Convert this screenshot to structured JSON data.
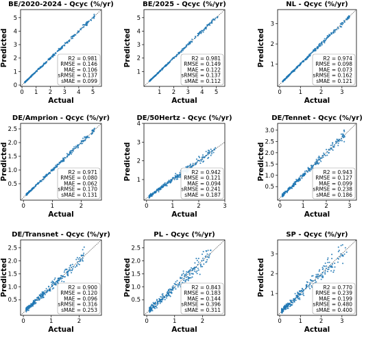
{
  "figure": {
    "axis_xlabel": "Actual",
    "axis_ylabel": "Predicted",
    "colors": {
      "points": "#1f77b4",
      "identity_line": "#444444",
      "text": "#000000"
    }
  },
  "chart_data": [
    {
      "type": "scatter",
      "title": "BE/2020-2024 - Qcyc (%/yr)",
      "xlabel": "Actual",
      "ylabel": "Predicted",
      "xlim": [
        -0.1,
        5.6
      ],
      "ylim": [
        -0.1,
        5.6
      ],
      "xticks": [
        0,
        1,
        2,
        3,
        4,
        5
      ],
      "yticks": [
        0,
        1,
        2,
        3,
        4,
        5
      ],
      "xtick_labels": [
        "0",
        "1",
        "2",
        "3",
        "4",
        "5"
      ],
      "ytick_labels": [
        "0",
        "1",
        "2",
        "3",
        "4",
        "5"
      ],
      "identity_line": true,
      "grid": false,
      "point_range": [
        0.2,
        5.1
      ],
      "spread": 0.1,
      "metrics": [
        [
          "R2",
          "0.981"
        ],
        [
          "RMSE",
          "0.146"
        ],
        [
          "MAE",
          "0.106"
        ],
        [
          "sRMSE",
          "0.137"
        ],
        [
          "sMAE",
          "0.099"
        ]
      ]
    },
    {
      "type": "scatter",
      "title": "BE/2025 - Qcyc (%/yr)",
      "xlabel": "Actual",
      "ylabel": "Predicted",
      "xlim": [
        -0.1,
        5.6
      ],
      "ylim": [
        -0.1,
        5.6
      ],
      "xticks": [
        1,
        2,
        3,
        4,
        5
      ],
      "yticks": [
        1,
        2,
        3,
        4,
        5
      ],
      "xtick_labels": [
        "1",
        "2",
        "3",
        "4",
        "5"
      ],
      "ytick_labels": [
        "1",
        "2",
        "3",
        "4",
        "5"
      ],
      "identity_line": true,
      "grid": false,
      "point_range": [
        0.3,
        5.1
      ],
      "spread": 0.09,
      "metrics": [
        [
          "R2",
          "0.981"
        ],
        [
          "RMSE",
          "0.149"
        ],
        [
          "MAE",
          "0.122"
        ],
        [
          "sRMSE",
          "0.137"
        ],
        [
          "sMAE",
          "0.112"
        ]
      ]
    },
    {
      "type": "scatter",
      "title": "NL - Qcyc (%/yr)",
      "xlabel": "Actual",
      "ylabel": "Predicted",
      "xlim": [
        -0.1,
        3.7
      ],
      "ylim": [
        -0.1,
        3.7
      ],
      "xticks": [
        0,
        1,
        2,
        3
      ],
      "yticks": [
        1,
        2,
        3
      ],
      "xtick_labels": [
        "0",
        "1",
        "2",
        "3"
      ],
      "ytick_labels": [
        "1",
        "2",
        "3"
      ],
      "identity_line": true,
      "grid": false,
      "point_range": [
        0.15,
        3.4
      ],
      "spread": 0.1,
      "metrics": [
        [
          "R2",
          "0.974"
        ],
        [
          "RMSE",
          "0.098"
        ],
        [
          "MAE",
          "0.073"
        ],
        [
          "sRMSE",
          "0.162"
        ],
        [
          "sMAE",
          "0.121"
        ]
      ]
    },
    {
      "type": "scatter",
      "title": "DE/Amprion - Qcyc (%/yr)",
      "xlabel": "Actual",
      "ylabel": "Predicted",
      "xlim": [
        -0.1,
        2.7
      ],
      "ylim": [
        -0.1,
        2.7
      ],
      "xticks": [
        0,
        1,
        2
      ],
      "yticks": [
        0.5,
        1.0,
        1.5,
        2.0,
        2.5
      ],
      "xtick_labels": [
        "0",
        "1",
        "2"
      ],
      "ytick_labels": [
        "0.5",
        "1.0",
        "1.5",
        "2.0",
        "2.5"
      ],
      "identity_line": true,
      "grid": false,
      "point_range": [
        0.1,
        2.5
      ],
      "spread": 0.1,
      "metrics": [
        [
          "R2",
          "0.971"
        ],
        [
          "RMSE",
          "0.080"
        ],
        [
          "MAE",
          "0.062"
        ],
        [
          "sRMSE",
          "0.170"
        ],
        [
          "sMAE",
          "0.131"
        ]
      ]
    },
    {
      "type": "scatter",
      "title": "DE/50Hertz - Qcyc (%/yr)",
      "xlabel": "Actual",
      "ylabel": "Predicted",
      "xlim": [
        -0.1,
        3.0
      ],
      "ylim": [
        -0.1,
        4.0
      ],
      "xticks": [
        0,
        1,
        2,
        3
      ],
      "yticks": [
        1,
        2,
        3,
        4
      ],
      "xtick_labels": [
        "0",
        "1",
        "2",
        "3"
      ],
      "ytick_labels": [
        "1",
        "2",
        "3",
        "4"
      ],
      "identity_line": true,
      "grid": false,
      "point_range": [
        0.1,
        2.7
      ],
      "spread": 0.25,
      "metrics": [
        [
          "R2",
          "0.942"
        ],
        [
          "RMSE",
          "0.121"
        ],
        [
          "MAE",
          "0.094"
        ],
        [
          "sRMSE",
          "0.241"
        ],
        [
          "sMAE",
          "0.187"
        ]
      ]
    },
    {
      "type": "scatter",
      "title": "DE/Tennet - Qcyc (%/yr)",
      "xlabel": "Actual",
      "ylabel": "Predicted",
      "xlim": [
        -0.1,
        3.3
      ],
      "ylim": [
        -0.1,
        3.3
      ],
      "xticks": [
        0,
        1,
        2,
        3
      ],
      "yticks": [
        0.5,
        1.0,
        1.5,
        2.0,
        2.5,
        3.0
      ],
      "xtick_labels": [
        "0",
        "1",
        "2",
        "3"
      ],
      "ytick_labels": [
        "0.5",
        "1.0",
        "1.5",
        "2.0",
        "2.5",
        "3.0"
      ],
      "identity_line": true,
      "grid": false,
      "point_range": [
        0.1,
        2.8
      ],
      "spread": 0.22,
      "metrics": [
        [
          "R2",
          "0.943"
        ],
        [
          "RMSE",
          "0.127"
        ],
        [
          "MAE",
          "0.099"
        ],
        [
          "sRMSE",
          "0.238"
        ],
        [
          "sMAE",
          "0.186"
        ]
      ]
    },
    {
      "type": "scatter",
      "title": "DE/Transnet - Qcyc (%/yr)",
      "xlabel": "Actual",
      "ylabel": "Predicted",
      "xlim": [
        -0.1,
        2.8
      ],
      "ylim": [
        -0.1,
        2.8
      ],
      "xticks": [
        0,
        1,
        2
      ],
      "yticks": [
        0.5,
        1.0,
        1.5,
        2.0,
        2.5
      ],
      "xtick_labels": [
        "0",
        "1",
        "2"
      ],
      "ytick_labels": [
        "0.5",
        "1.0",
        "1.5",
        "2.0",
        "2.5"
      ],
      "identity_line": true,
      "grid": false,
      "point_range": [
        0.1,
        2.2
      ],
      "spread": 0.3,
      "metrics": [
        [
          "R2",
          "0.900"
        ],
        [
          "RMSE",
          "0.120"
        ],
        [
          "MAE",
          "0.096"
        ],
        [
          "sRMSE",
          "0.316"
        ],
        [
          "sMAE",
          "0.253"
        ]
      ]
    },
    {
      "type": "scatter",
      "title": "PL - Qcyc (%/yr)",
      "xlabel": "Actual",
      "ylabel": "Predicted",
      "xlim": [
        -0.1,
        2.8
      ],
      "ylim": [
        -0.1,
        2.8
      ],
      "xticks": [
        0,
        1,
        2
      ],
      "yticks": [
        0.5,
        1.0,
        1.5,
        2.0,
        2.5
      ],
      "xtick_labels": [
        "0",
        "1",
        "2"
      ],
      "ytick_labels": [
        "0.5",
        "1.0",
        "1.5",
        "2.0",
        "2.5"
      ],
      "identity_line": true,
      "grid": false,
      "point_range": [
        0.1,
        2.3
      ],
      "spread": 0.4,
      "metrics": [
        [
          "R2",
          "0.843"
        ],
        [
          "RMSE",
          "0.183"
        ],
        [
          "MAE",
          "0.144"
        ],
        [
          "sRMSE",
          "0.396"
        ],
        [
          "sMAE",
          "0.311"
        ]
      ]
    },
    {
      "type": "scatter",
      "title": "SP - Qcyc (%/yr)",
      "xlabel": "Actual",
      "ylabel": "Predicted",
      "xlim": [
        -0.1,
        3.7
      ],
      "ylim": [
        -0.1,
        3.7
      ],
      "xticks": [
        0,
        1,
        2,
        3
      ],
      "yticks": [
        1,
        2,
        3
      ],
      "xtick_labels": [
        "0",
        "1",
        "2",
        "3"
      ],
      "ytick_labels": [
        "1",
        "2",
        "3"
      ],
      "identity_line": true,
      "grid": false,
      "point_range": [
        0.1,
        3.3
      ],
      "spread": 0.45,
      "metrics": [
        [
          "R2",
          "0.770"
        ],
        [
          "RMSE",
          "0.239"
        ],
        [
          "MAE",
          "0.199"
        ],
        [
          "sRMSE",
          "0.480"
        ],
        [
          "sMAE",
          "0.400"
        ]
      ]
    }
  ]
}
